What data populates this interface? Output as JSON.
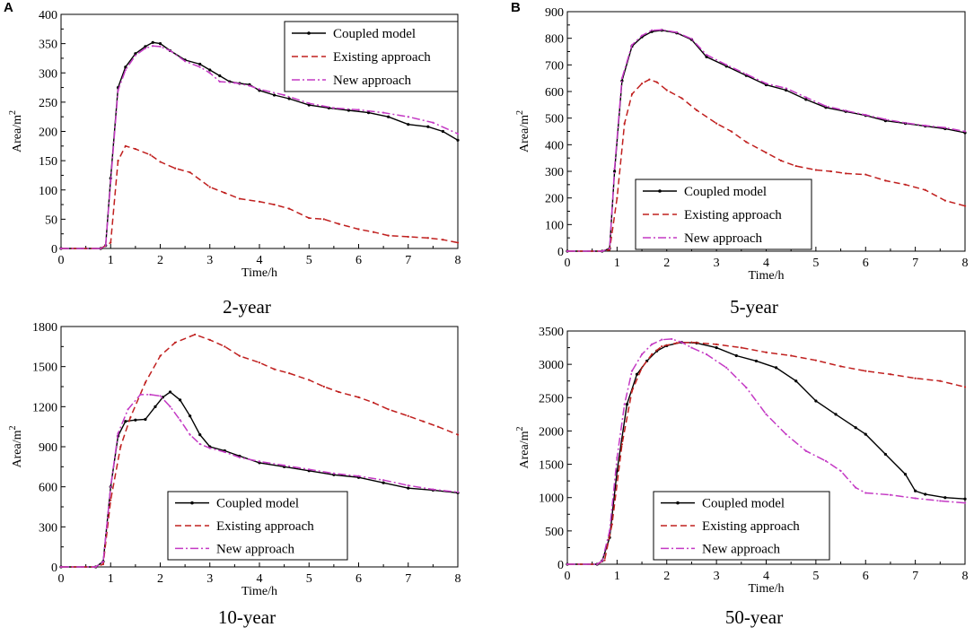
{
  "panels": {
    "left": {
      "letter": "A"
    },
    "right": {
      "letter": "B"
    }
  },
  "colors": {
    "coupled": "#000000",
    "existing": "#c0201f",
    "new": "#c43ac4"
  },
  "chart_data": [
    {
      "type": "line",
      "caption": "2-year",
      "xlabel": "Time/h",
      "ylabel": "Area/m²",
      "ylabel_base": "Area/m",
      "ylabel_sup": "2",
      "xlim": [
        0,
        8
      ],
      "ylim": [
        0,
        400
      ],
      "xticks": [
        0,
        1,
        2,
        3,
        4,
        5,
        6,
        7,
        8
      ],
      "yticks": [
        0,
        50,
        100,
        150,
        200,
        250,
        300,
        350,
        400
      ],
      "legend_position": "top-right",
      "series": [
        {
          "name": "Coupled model",
          "style": "solid-dot",
          "color": "#000000",
          "x": [
            0,
            0.8,
            0.9,
            1.0,
            1.15,
            1.3,
            1.5,
            1.7,
            1.85,
            2.0,
            2.2,
            2.5,
            2.8,
            3.0,
            3.2,
            3.4,
            3.6,
            3.8,
            4.0,
            4.3,
            4.6,
            5.0,
            5.4,
            5.8,
            6.2,
            6.6,
            7.0,
            7.4,
            7.7,
            8.0
          ],
          "y": [
            0,
            0,
            5,
            120,
            275,
            310,
            333,
            345,
            352,
            350,
            338,
            322,
            315,
            305,
            295,
            285,
            282,
            280,
            270,
            262,
            256,
            245,
            240,
            236,
            232,
            225,
            212,
            208,
            200,
            185
          ]
        },
        {
          "name": "Existing approach",
          "style": "dashed",
          "color": "#c0201f",
          "x": [
            0,
            0.8,
            1.0,
            1.15,
            1.3,
            1.5,
            1.8,
            2.0,
            2.3,
            2.6,
            3.0,
            3.3,
            3.6,
            4.0,
            4.3,
            4.6,
            5.0,
            5.3,
            5.6,
            6.0,
            6.3,
            6.6,
            7.0,
            7.4,
            7.7,
            8.0
          ],
          "y": [
            0,
            0,
            10,
            150,
            175,
            170,
            160,
            148,
            137,
            130,
            105,
            95,
            85,
            80,
            75,
            68,
            52,
            50,
            42,
            33,
            28,
            22,
            20,
            18,
            15,
            10
          ]
        },
        {
          "name": "New approach",
          "style": "dashdot",
          "color": "#c43ac4",
          "x": [
            0,
            0.8,
            0.9,
            1.0,
            1.15,
            1.3,
            1.5,
            1.7,
            1.85,
            2.0,
            2.2,
            2.5,
            2.8,
            3.0,
            3.2,
            3.5,
            3.8,
            4.0,
            4.5,
            5.0,
            5.5,
            6.0,
            6.5,
            7.0,
            7.5,
            8.0
          ],
          "y": [
            0,
            0,
            5,
            115,
            270,
            305,
            330,
            342,
            346,
            345,
            338,
            320,
            310,
            300,
            285,
            283,
            278,
            272,
            262,
            248,
            240,
            237,
            232,
            225,
            215,
            196
          ]
        }
      ],
      "legend_labels": [
        "Coupled model",
        "Existing approach",
        "New approach"
      ]
    },
    {
      "type": "line",
      "caption": "5-year",
      "xlabel": "Time/h",
      "ylabel": "Area/m²",
      "ylabel_base": "Area/m",
      "ylabel_sup": "2",
      "xlim": [
        0,
        8
      ],
      "ylim": [
        0,
        900
      ],
      "xticks": [
        0,
        1,
        2,
        3,
        4,
        5,
        6,
        7,
        8
      ],
      "yticks": [
        0,
        100,
        200,
        300,
        400,
        500,
        600,
        700,
        800,
        900
      ],
      "legend_position": "bottom-left",
      "series": [
        {
          "name": "Coupled model",
          "style": "solid-dot",
          "color": "#000000",
          "x": [
            0,
            0.7,
            0.85,
            0.95,
            1.1,
            1.3,
            1.5,
            1.7,
            1.9,
            2.2,
            2.5,
            2.8,
            3.2,
            3.6,
            4.0,
            4.4,
            4.8,
            5.2,
            5.6,
            6.0,
            6.4,
            6.8,
            7.2,
            7.6,
            8.0
          ],
          "y": [
            0,
            0,
            10,
            300,
            640,
            770,
            805,
            825,
            830,
            820,
            795,
            730,
            695,
            660,
            625,
            605,
            570,
            540,
            525,
            510,
            490,
            480,
            470,
            460,
            445
          ]
        },
        {
          "name": "Existing approach",
          "style": "dashed",
          "color": "#c0201f",
          "x": [
            0,
            0.7,
            0.85,
            1.0,
            1.15,
            1.3,
            1.5,
            1.65,
            1.8,
            2.0,
            2.3,
            2.6,
            3.0,
            3.3,
            3.6,
            4.0,
            4.3,
            4.6,
            5.0,
            5.3,
            5.6,
            6.0,
            6.4,
            6.8,
            7.2,
            7.6,
            8.0
          ],
          "y": [
            0,
            0,
            5,
            200,
            480,
            590,
            630,
            645,
            635,
            605,
            575,
            530,
            480,
            450,
            410,
            370,
            340,
            320,
            305,
            300,
            292,
            288,
            265,
            250,
            230,
            190,
            170
          ]
        },
        {
          "name": "New approach",
          "style": "dashdot",
          "color": "#c43ac4",
          "x": [
            0,
            0.7,
            0.85,
            0.95,
            1.1,
            1.3,
            1.5,
            1.7,
            1.9,
            2.2,
            2.5,
            2.8,
            3.2,
            3.6,
            4.0,
            4.4,
            4.8,
            5.2,
            5.6,
            6.0,
            6.4,
            6.8,
            7.2,
            7.6,
            8.0
          ],
          "y": [
            0,
            0,
            10,
            310,
            650,
            775,
            810,
            830,
            832,
            822,
            798,
            738,
            700,
            665,
            630,
            612,
            578,
            545,
            528,
            512,
            495,
            482,
            472,
            464,
            450
          ]
        }
      ],
      "legend_labels": [
        "Coupled model",
        "Existing approach",
        "New approach"
      ]
    },
    {
      "type": "line",
      "caption": "10-year",
      "xlabel": "Time/h",
      "ylabel": "Area/m²",
      "ylabel_base": "Area/m",
      "ylabel_sup": "2",
      "xlim": [
        0,
        8
      ],
      "ylim": [
        0,
        1800
      ],
      "xticks": [
        0,
        1,
        2,
        3,
        4,
        5,
        6,
        7,
        8
      ],
      "yticks": [
        0,
        300,
        600,
        900,
        1200,
        1500,
        1800
      ],
      "legend_position": "bottom-center",
      "series": [
        {
          "name": "Coupled model",
          "style": "solid-dot",
          "color": "#000000",
          "x": [
            0,
            0.7,
            0.85,
            1.0,
            1.15,
            1.3,
            1.5,
            1.7,
            1.9,
            2.05,
            2.2,
            2.4,
            2.6,
            2.8,
            3.0,
            3.3,
            3.6,
            4.0,
            4.5,
            5.0,
            5.5,
            6.0,
            6.5,
            7.0,
            7.5,
            8.0
          ],
          "y": [
            0,
            0,
            40,
            600,
            980,
            1090,
            1100,
            1105,
            1200,
            1270,
            1310,
            1250,
            1130,
            990,
            900,
            870,
            830,
            780,
            750,
            720,
            690,
            670,
            630,
            590,
            575,
            555
          ]
        },
        {
          "name": "Existing approach",
          "style": "dashed",
          "color": "#c0201f",
          "x": [
            0,
            0.7,
            0.85,
            1.0,
            1.2,
            1.4,
            1.7,
            2.0,
            2.3,
            2.7,
            3.0,
            3.3,
            3.6,
            4.0,
            4.3,
            4.6,
            5.0,
            5.3,
            5.6,
            6.0,
            6.3,
            6.6,
            7.0,
            7.3,
            7.6,
            8.0
          ],
          "y": [
            0,
            0,
            20,
            500,
            900,
            1120,
            1380,
            1580,
            1680,
            1740,
            1700,
            1650,
            1580,
            1530,
            1480,
            1450,
            1400,
            1350,
            1310,
            1270,
            1230,
            1180,
            1130,
            1090,
            1050,
            990
          ]
        },
        {
          "name": "New approach",
          "style": "dashdot",
          "color": "#c43ac4",
          "x": [
            0,
            0.7,
            0.85,
            1.0,
            1.15,
            1.35,
            1.6,
            1.8,
            2.0,
            2.2,
            2.4,
            2.6,
            2.8,
            3.0,
            3.3,
            3.6,
            4.0,
            4.5,
            5.0,
            5.5,
            6.0,
            6.5,
            7.0,
            7.5,
            8.0
          ],
          "y": [
            0,
            0,
            40,
            600,
            1000,
            1180,
            1290,
            1290,
            1280,
            1200,
            1100,
            990,
            920,
            890,
            860,
            820,
            790,
            760,
            730,
            700,
            680,
            650,
            610,
            580,
            560
          ]
        }
      ],
      "legend_labels": [
        "Coupled model",
        "Existing approach",
        "New approach"
      ]
    },
    {
      "type": "line",
      "caption": "50-year",
      "xlabel": "Time/h",
      "ylabel": "Area/m²",
      "ylabel_base": "Area/m",
      "ylabel_sup": "2",
      "xlim": [
        0,
        8
      ],
      "ylim": [
        0,
        3500
      ],
      "xticks": [
        0,
        1,
        2,
        3,
        4,
        5,
        6,
        7,
        8
      ],
      "yticks": [
        0,
        500,
        1000,
        1500,
        2000,
        2500,
        3000,
        3500
      ],
      "legend_position": "bottom-center",
      "series": [
        {
          "name": "Coupled model",
          "style": "solid-dot",
          "color": "#000000",
          "x": [
            0,
            0.6,
            0.7,
            0.85,
            1.0,
            1.2,
            1.4,
            1.6,
            1.8,
            2.0,
            2.3,
            2.6,
            3.0,
            3.4,
            3.8,
            4.2,
            4.6,
            5.0,
            5.4,
            5.8,
            6.0,
            6.4,
            6.8,
            7.0,
            7.2,
            7.6,
            8.0
          ],
          "y": [
            0,
            0,
            50,
            400,
            1400,
            2400,
            2850,
            3050,
            3200,
            3280,
            3330,
            3320,
            3250,
            3130,
            3050,
            2950,
            2750,
            2450,
            2250,
            2050,
            1950,
            1650,
            1350,
            1100,
            1050,
            1000,
            980
          ]
        },
        {
          "name": "Existing approach",
          "style": "dashed",
          "color": "#c0201f",
          "x": [
            0,
            0.6,
            0.75,
            0.9,
            1.1,
            1.3,
            1.5,
            1.7,
            1.9,
            2.2,
            2.5,
            3.0,
            3.5,
            4.0,
            4.5,
            5.0,
            5.5,
            6.0,
            6.5,
            7.0,
            7.5,
            8.0
          ],
          "y": [
            0,
            0,
            60,
            600,
            1800,
            2600,
            2950,
            3150,
            3270,
            3320,
            3330,
            3300,
            3250,
            3180,
            3130,
            3060,
            2970,
            2900,
            2850,
            2790,
            2750,
            2660
          ]
        },
        {
          "name": "New approach",
          "style": "dashdot",
          "color": "#c43ac4",
          "x": [
            0,
            0.6,
            0.7,
            0.85,
            1.0,
            1.15,
            1.3,
            1.5,
            1.7,
            1.9,
            2.1,
            2.3,
            2.5,
            2.8,
            3.2,
            3.6,
            4.0,
            4.4,
            4.8,
            5.2,
            5.5,
            5.8,
            6.0,
            6.5,
            7.0,
            7.5,
            8.0
          ],
          "y": [
            0,
            0,
            50,
            500,
            1600,
            2400,
            2900,
            3150,
            3300,
            3370,
            3380,
            3330,
            3250,
            3150,
            2950,
            2650,
            2250,
            1950,
            1700,
            1550,
            1400,
            1150,
            1070,
            1040,
            990,
            950,
            920
          ]
        }
      ],
      "legend_labels": [
        "Coupled model",
        "Existing approach",
        "New approach"
      ]
    }
  ]
}
